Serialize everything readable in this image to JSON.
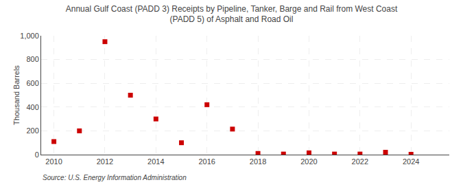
{
  "chart_data": {
    "type": "scatter",
    "title": "Annual Gulf Coast (PADD 3) Receipts by Pipeline, Tanker, Barge and Rail from West Coast\n(PADD 5) of Asphalt and Road Oil",
    "ylabel": "Thousand Barrels",
    "annotations": [
      "Source: U.S. Energy Information Administration"
    ],
    "x": [
      2010,
      2011,
      2012,
      2013,
      2014,
      2015,
      2016,
      2017,
      2018,
      2019,
      2020,
      2021,
      2022,
      2023,
      2024
    ],
    "values": [
      110,
      200,
      950,
      500,
      300,
      100,
      420,
      215,
      10,
      5,
      15,
      5,
      5,
      20,
      3
    ],
    "color": "#cc0000",
    "marker": "square",
    "xlim": [
      2009.5,
      2025.5
    ],
    "ylim": [
      0,
      1000
    ],
    "xticks": [
      2010,
      2012,
      2014,
      2016,
      2018,
      2020,
      2022,
      2024
    ],
    "yticks": [
      0,
      200,
      400,
      600,
      800,
      {
        "value": 1000,
        "label": "1,000"
      }
    ],
    "grid": true
  }
}
